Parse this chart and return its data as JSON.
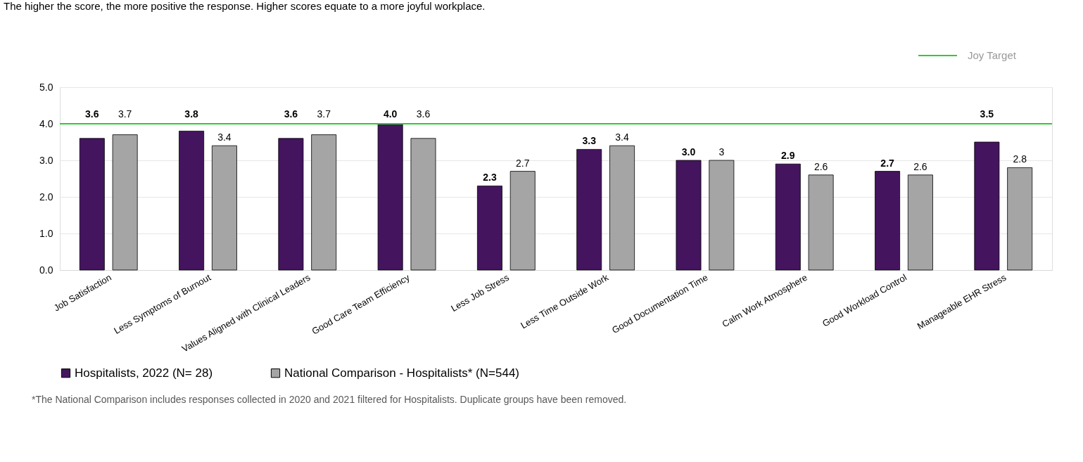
{
  "chart_data": {
    "type": "bar",
    "title": "The higher the score, the more positive the response. Higher scores equate to a more joyful workplace.",
    "categories": [
      "Job Satisfaction",
      "Less Symptoms of Burnout",
      "Values Aligned with Clinical Leaders",
      "Good Care Team Efficiency",
      "Less Job Stress",
      "Less Time Outside Work",
      "Good Documentation Time",
      "Calm Work Atmosphere",
      "Good Workload Control",
      "Manageable EHR Stress"
    ],
    "series": [
      {
        "name": "Hospitalists, 2022 (N= 28)",
        "color": "#44145f",
        "values": [
          3.6,
          3.8,
          3.6,
          4.0,
          2.3,
          3.3,
          3.0,
          2.9,
          2.7,
          3.5
        ],
        "value_labels": [
          "3.6",
          "3.8",
          "3.6",
          "4.0",
          "2.3",
          "3.3",
          "3.0",
          "2.9",
          "2.7",
          "3.5"
        ]
      },
      {
        "name": "National Comparison - Hospitalists* (N=544)",
        "color": "#a5a5a5",
        "values": [
          3.7,
          3.4,
          3.7,
          3.6,
          2.7,
          3.4,
          3.0,
          2.6,
          2.6,
          2.8
        ],
        "value_labels": [
          "3.7",
          "3.4",
          "3.7",
          "3.6",
          "2.7",
          "3.4",
          "3",
          "2.6",
          "2.6",
          "2.8"
        ]
      }
    ],
    "ylim": [
      0,
      5
    ],
    "yticks": [
      {
        "value": 0,
        "label": "0.0"
      },
      {
        "value": 1,
        "label": "1.0"
      },
      {
        "value": 2,
        "label": "2.0"
      },
      {
        "value": 3,
        "label": "3.0"
      },
      {
        "value": 4,
        "label": "4.0"
      },
      {
        "value": 5,
        "label": "5.0"
      }
    ],
    "grid": "y",
    "legend": "bottom",
    "ref_lines": [
      {
        "axis": "y",
        "value": 4.0,
        "label": "Joy Target",
        "color": "#2ecc2e"
      }
    ],
    "annotations": [
      "*The National Comparison includes responses collected in 2020 and 2021 filtered for Hospitalists. Duplicate groups have been removed."
    ]
  }
}
